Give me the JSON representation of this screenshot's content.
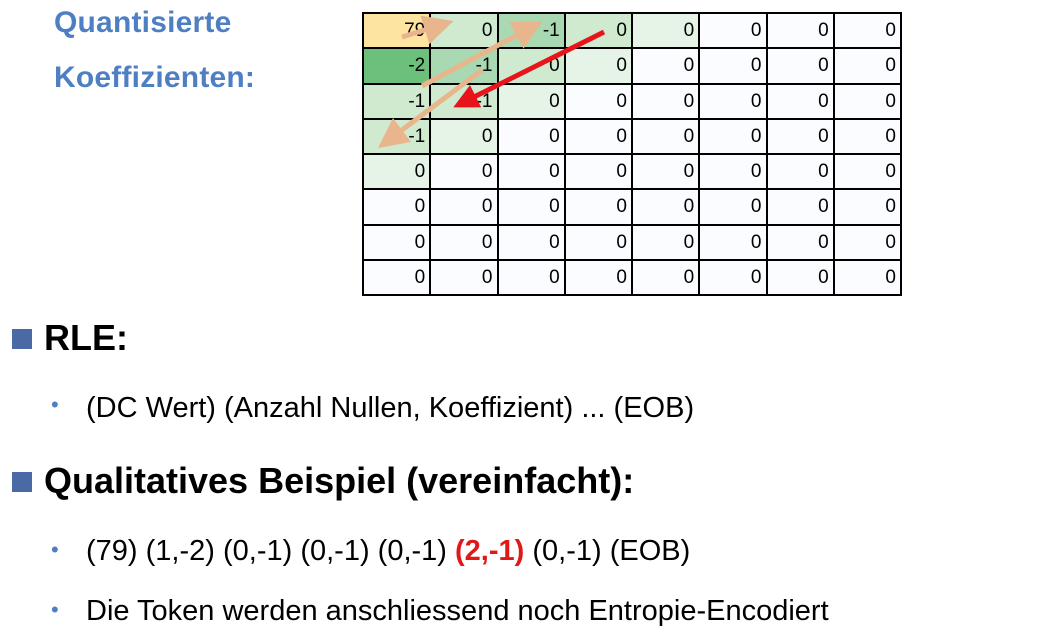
{
  "heading": {
    "line1": "Quantisierte",
    "line2": "Koeffizienten:"
  },
  "matrix": {
    "rows": [
      [
        "79",
        "0",
        "-1",
        "0",
        "0",
        "0",
        "0",
        "0"
      ],
      [
        "-2",
        "-1",
        "0",
        "0",
        "0",
        "0",
        "0",
        "0"
      ],
      [
        "-1",
        "-1",
        "0",
        "0",
        "0",
        "0",
        "0",
        "0"
      ],
      [
        "-1",
        "0",
        "0",
        "0",
        "0",
        "0",
        "0",
        "0"
      ],
      [
        "0",
        "0",
        "0",
        "0",
        "0",
        "0",
        "0",
        "0"
      ],
      [
        "0",
        "0",
        "0",
        "0",
        "0",
        "0",
        "0",
        "0"
      ],
      [
        "0",
        "0",
        "0",
        "0",
        "0",
        "0",
        "0",
        "0"
      ],
      [
        "0",
        "0",
        "0",
        "0",
        "0",
        "0",
        "0",
        "0"
      ]
    ],
    "colors": {
      "dc": "#fde4a0",
      "dark_green": "#6cc07c",
      "mid_green": "#a8d9b2",
      "light_green": "#cfeacf",
      "pale_green": "#e6f4e8",
      "zero": "#fbfcff",
      "arrow_tan": "#e8b58c",
      "arrow_red": "#e8141c"
    }
  },
  "rle": {
    "title": "RLE:",
    "bullet": "(DC Wert) (Anzahl Nullen, Koeffizient) ... (EOB)"
  },
  "example": {
    "title": "Qualitatives Beispiel (vereinfacht):",
    "seq_before": "(79) (1,-2) (0,-1) (0,-1) (0,-1) ",
    "seq_highlight": "(2,-1)",
    "seq_after": " (0,-1) (EOB)",
    "note": "Die Token werden anschliessend noch Entropie-Encodiert"
  },
  "accent": "#4f7fc3"
}
